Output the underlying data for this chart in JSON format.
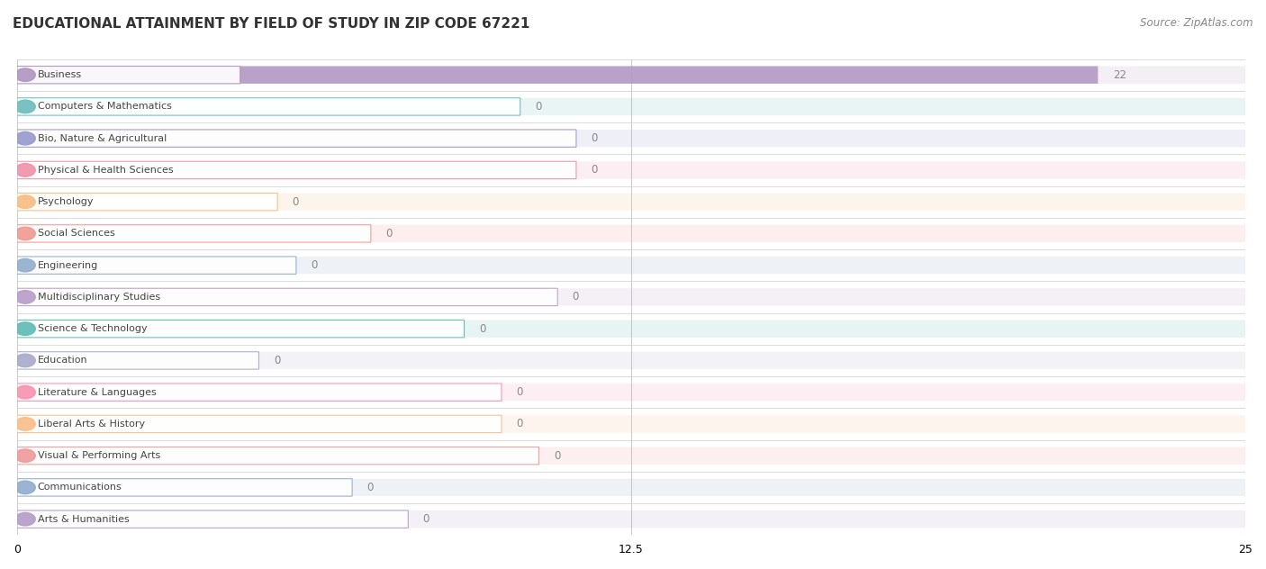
{
  "title": "EDUCATIONAL ATTAINMENT BY FIELD OF STUDY IN ZIP CODE 67221",
  "source": "Source: ZipAtlas.com",
  "categories": [
    "Business",
    "Computers & Mathematics",
    "Bio, Nature & Agricultural",
    "Physical & Health Sciences",
    "Psychology",
    "Social Sciences",
    "Engineering",
    "Multidisciplinary Studies",
    "Science & Technology",
    "Education",
    "Literature & Languages",
    "Liberal Arts & History",
    "Visual & Performing Arts",
    "Communications",
    "Arts & Humanities"
  ],
  "values": [
    22,
    0,
    0,
    0,
    0,
    0,
    0,
    0,
    0,
    0,
    0,
    0,
    0,
    0,
    0
  ],
  "bar_colors": [
    "#b094c0",
    "#6cbcbc",
    "#9898cc",
    "#f090a8",
    "#f8bc80",
    "#f09890",
    "#90accc",
    "#b89cc8",
    "#5cbcb4",
    "#a8a8cc",
    "#f890b0",
    "#f8bc88",
    "#f09898",
    "#90accc",
    "#b49cc8"
  ],
  "xlim": [
    0,
    25
  ],
  "xticks": [
    0,
    12.5,
    25
  ],
  "background_color": "#ffffff",
  "row_line_color": "#dddddd",
  "title_fontsize": 11,
  "source_fontsize": 8.5,
  "value_label_color": "#888888"
}
